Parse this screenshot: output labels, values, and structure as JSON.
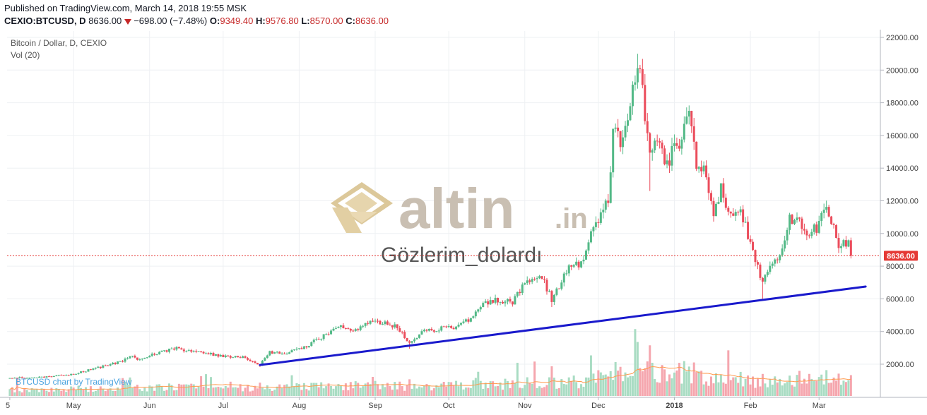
{
  "header": {
    "published": "Published on TradingView.com, March 14, 2018 19:55 MSK",
    "symbol": "CEXIO:BTCUSD, D",
    "last": "8636.00",
    "change": "−698.00 (−7.48%)",
    "o_label": "O:",
    "o_value": "9349.40",
    "h_label": "H:",
    "h_value": "9576.80",
    "l_label": "L:",
    "l_value": "8570.00",
    "c_label": "C:",
    "c_value": "8636.00"
  },
  "legend": {
    "title": "Bitcoin / Dollar, D, CEXIO",
    "volume": "Vol (20)"
  },
  "watermark": {
    "brand": "altin",
    "brand_suffix": ".in",
    "caption": "Gözlerim_dolardı"
  },
  "credit": "BTCUSD chart by TradingView",
  "price_tag": "8636.00",
  "colors": {
    "up": "#53b987",
    "down": "#eb4d5c",
    "up_vol": "#a9dcc3",
    "down_vol": "#f5a6ae",
    "trendline": "#1a1acc",
    "ma_line": "#ff9a4d",
    "logo": "#c9bfb2",
    "last_line": "#e53935"
  },
  "chart_data": {
    "type": "candlestick",
    "title": "Bitcoin / Dollar, D, CEXIO",
    "x_ticks": [
      "5",
      "May",
      "Jun",
      "Jul",
      "Aug",
      "Sep",
      "Oct",
      "Nov",
      "Dec",
      "2018",
      "Feb",
      "Mar"
    ],
    "y_ticks": [
      "22000.00",
      "20000.00",
      "18000.00",
      "16000.00",
      "14000.00",
      "12000.00",
      "10000.00",
      "8000.00",
      "6000.00",
      "4000.00",
      "2000.00"
    ],
    "ylim": [
      0,
      22500
    ],
    "last_price": 8636.0,
    "close_path": [
      [
        "2017-04-05",
        1150
      ],
      [
        "2017-04-20",
        1230
      ],
      [
        "2017-05-01",
        1400
      ],
      [
        "2017-05-10",
        1750
      ],
      [
        "2017-05-20",
        2150
      ],
      [
        "2017-05-25",
        2550
      ],
      [
        "2017-05-28",
        2250
      ],
      [
        "2017-06-06",
        2800
      ],
      [
        "2017-06-12",
        2950
      ],
      [
        "2017-06-20",
        2700
      ],
      [
        "2017-06-25",
        2650
      ],
      [
        "2017-07-01",
        2500
      ],
      [
        "2017-07-10",
        2400
      ],
      [
        "2017-07-16",
        1950
      ],
      [
        "2017-07-20",
        2750
      ],
      [
        "2017-07-28",
        2700
      ],
      [
        "2017-08-05",
        3200
      ],
      [
        "2017-08-12",
        3850
      ],
      [
        "2017-08-17",
        4350
      ],
      [
        "2017-08-22",
        4050
      ],
      [
        "2017-09-01",
        4650
      ],
      [
        "2017-09-05",
        4500
      ],
      [
        "2017-09-10",
        4300
      ],
      [
        "2017-09-15",
        3300
      ],
      [
        "2017-09-20",
        3950
      ],
      [
        "2017-09-29",
        4250
      ],
      [
        "2017-10-05",
        4300
      ],
      [
        "2017-10-10",
        4850
      ],
      [
        "2017-10-16",
        5700
      ],
      [
        "2017-10-22",
        5950
      ],
      [
        "2017-10-27",
        5750
      ],
      [
        "2017-11-02",
        7200
      ],
      [
        "2017-11-08",
        7300
      ],
      [
        "2017-11-12",
        5950
      ],
      [
        "2017-11-18",
        7700
      ],
      [
        "2017-11-25",
        8400
      ],
      [
        "2017-11-28",
        9900
      ],
      [
        "2017-12-02",
        11000
      ],
      [
        "2017-12-05",
        12000
      ],
      [
        "2017-12-07",
        16300
      ],
      [
        "2017-12-10",
        15700
      ],
      [
        "2017-12-13",
        17000
      ],
      [
        "2017-12-17",
        20500
      ],
      [
        "2017-12-19",
        18500
      ],
      [
        "2017-12-22",
        14600
      ],
      [
        "2017-12-25",
        15800
      ],
      [
        "2017-12-29",
        14400
      ],
      [
        "2018-01-03",
        15500
      ],
      [
        "2018-01-07",
        17500
      ],
      [
        "2018-01-10",
        14200
      ],
      [
        "2018-01-13",
        14300
      ],
      [
        "2018-01-17",
        11200
      ],
      [
        "2018-01-20",
        12800
      ],
      [
        "2018-01-24",
        11000
      ],
      [
        "2018-01-28",
        11600
      ],
      [
        "2018-02-01",
        9200
      ],
      [
        "2018-02-05",
        7500
      ],
      [
        "2018-02-06",
        6900
      ],
      [
        "2018-02-09",
        8200
      ],
      [
        "2018-02-13",
        8700
      ],
      [
        "2018-02-17",
        10800
      ],
      [
        "2018-02-20",
        11200
      ],
      [
        "2018-02-24",
        9700
      ],
      [
        "2018-02-28",
        10400
      ],
      [
        "2018-03-04",
        11500
      ],
      [
        "2018-03-06",
        10800
      ],
      [
        "2018-03-09",
        9300
      ],
      [
        "2018-03-13",
        9350
      ],
      [
        "2018-03-14",
        8636
      ]
    ],
    "events": [
      [
        "2017-07-16",
        1830,
        "low"
      ],
      [
        "2017-09-15",
        2950,
        "low"
      ],
      [
        "2017-11-12",
        5500,
        "low"
      ],
      [
        "2017-12-17",
        21000,
        "high"
      ],
      [
        "2017-12-22",
        12600,
        "low"
      ],
      [
        "2018-02-06",
        6000,
        "low"
      ]
    ],
    "trendline": [
      [
        "2017-07-16",
        1950
      ],
      [
        "2018-03-20",
        6750
      ]
    ]
  }
}
